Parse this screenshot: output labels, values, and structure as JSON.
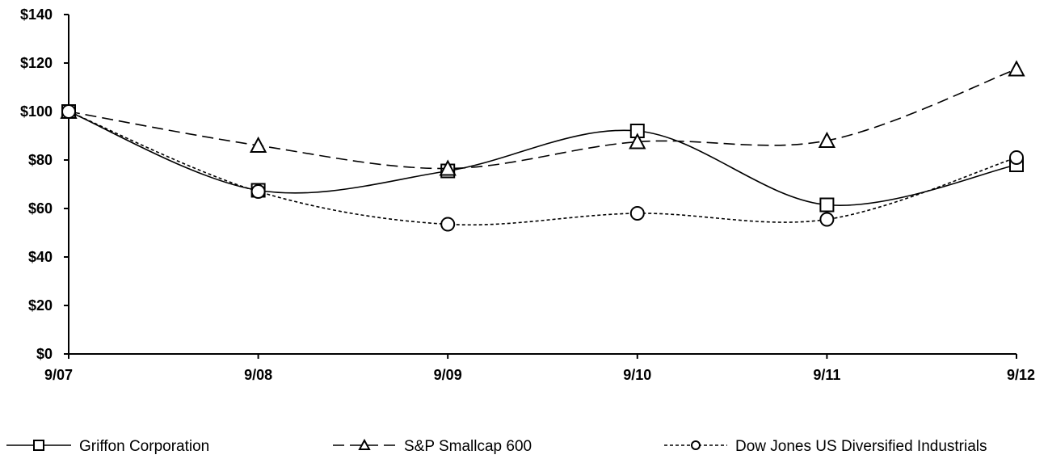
{
  "chart_data": {
    "type": "line",
    "title": "",
    "xlabel": "",
    "ylabel": "",
    "categories": [
      "9/07",
      "9/08",
      "9/09",
      "9/10",
      "9/11",
      "9/12"
    ],
    "y_ticks": [
      "$0",
      "$20",
      "$40",
      "$60",
      "$80",
      "$100",
      "$120",
      "$140"
    ],
    "ylim": [
      0,
      140
    ],
    "grid": false,
    "legend_position": "bottom",
    "series": [
      {
        "name": "Griffon Corporation",
        "values": [
          100,
          67.5,
          75.5,
          92,
          61.5,
          78
        ],
        "marker": "square",
        "dash": "solid"
      },
      {
        "name": "S&P Smallcap 600",
        "values": [
          100,
          86,
          76.5,
          87.5,
          88,
          117.5
        ],
        "marker": "triangle",
        "dash": "long-dash"
      },
      {
        "name": "Dow Jones US Diversified Industrials",
        "values": [
          100,
          67,
          53.5,
          58,
          55.5,
          81
        ],
        "marker": "circle",
        "dash": "short-dash"
      }
    ]
  }
}
